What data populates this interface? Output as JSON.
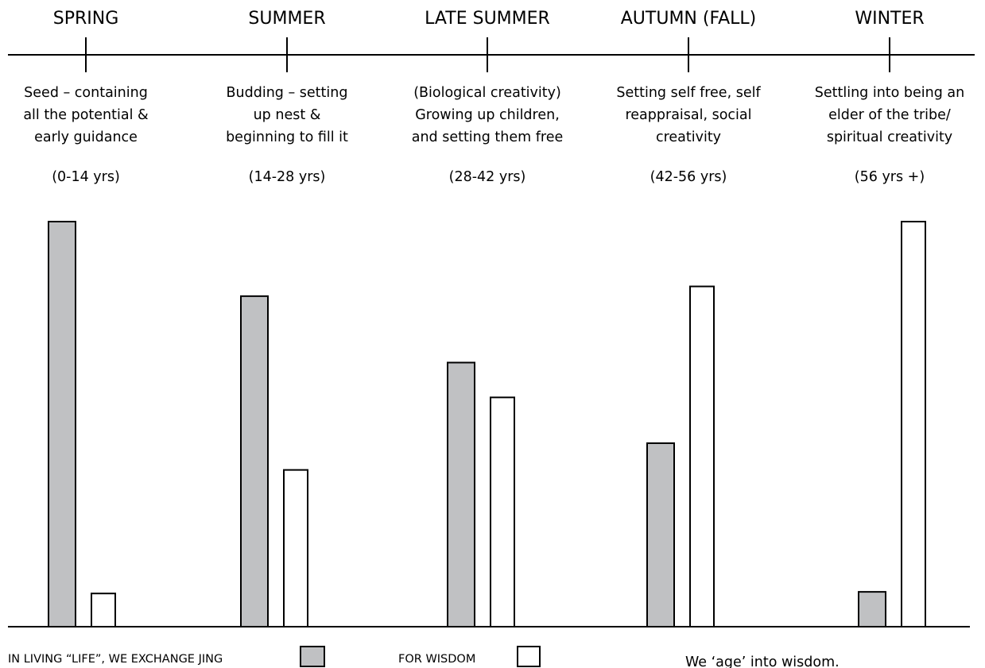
{
  "chart_data": {
    "type": "bar",
    "categories": [
      "SPRING",
      "SUMMER",
      "LATE SUMMER",
      "AUTUMN (FALL)",
      "WINTER"
    ],
    "descriptions": [
      [
        "Seed – containing",
        "all the potential &",
        "early guidance"
      ],
      [
        "Budding – setting",
        "up nest &",
        "beginning to fill it"
      ],
      [
        "(Biological creativity)",
        "Growing up children,",
        "and setting them free"
      ],
      [
        "Setting self free, self",
        "reappraisal, social",
        "creativity"
      ],
      [
        "Settling into being an",
        "elder of the tribe/",
        "spiritual creativity"
      ]
    ],
    "age_ranges": [
      "(0-14 yrs)",
      "(14-28 yrs)",
      "(28-42 yrs)",
      "(42-56 yrs)",
      "(56 yrs +)"
    ],
    "series": [
      {
        "name": "IN LIVING “LIFE”,  WE EXCHANGE JING",
        "values": [
          100,
          81.6,
          65.2,
          45.3,
          8.6
        ],
        "color": "#c0c1c3"
      },
      {
        "name": "FOR WISDOM",
        "values": [
          8.2,
          38.7,
          56.6,
          84.0,
          100
        ],
        "color": "#ffffff"
      }
    ],
    "ylim": [
      0,
      100
    ],
    "grid": false,
    "legend_position": "bottom",
    "annotation": "We ‘age’ into wisdom."
  }
}
